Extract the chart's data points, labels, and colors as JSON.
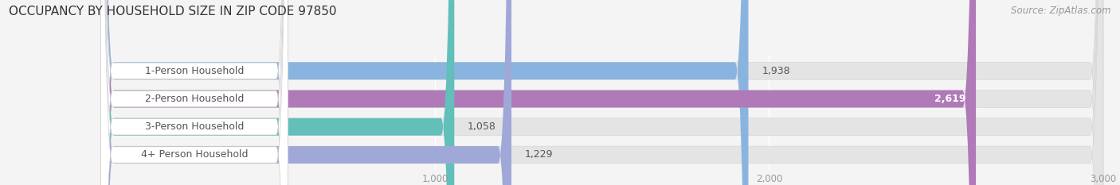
{
  "title": "OCCUPANCY BY HOUSEHOLD SIZE IN ZIP CODE 97850",
  "source": "Source: ZipAtlas.com",
  "categories": [
    "1-Person Household",
    "2-Person Household",
    "3-Person Household",
    "4+ Person Household"
  ],
  "values": [
    1938,
    2619,
    1058,
    1229
  ],
  "bar_colors": [
    "#8ab4e0",
    "#b07ab8",
    "#62bfba",
    "#a0a8d8"
  ],
  "xlim": [
    0,
    3000
  ],
  "xticks": [
    1000,
    2000,
    3000
  ],
  "fig_bg_color": "#f4f4f4",
  "bar_bg_color": "#e4e4e4",
  "title_fontsize": 11,
  "source_fontsize": 8.5,
  "label_fontsize": 9,
  "value_fontsize": 9,
  "bar_height": 0.62,
  "figsize": [
    14.06,
    2.33
  ]
}
